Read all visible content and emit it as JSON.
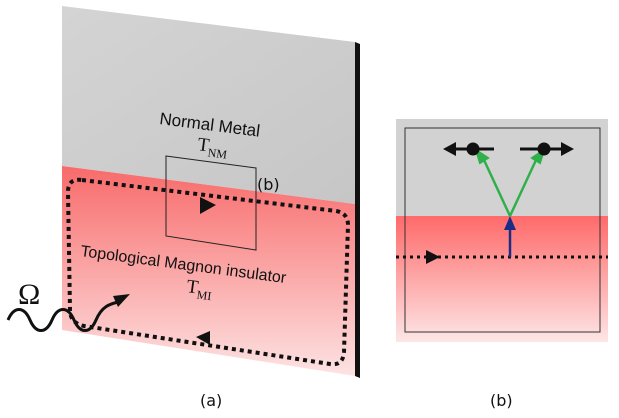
{
  "panel_a": {
    "caption": "(a)",
    "top_region_label": "Normal Metal",
    "top_region_symbol": "T",
    "top_region_subscript": "NM",
    "bottom_region_label": "Topological Magnon insulator",
    "bottom_region_symbol": "T",
    "bottom_region_subscript": "MI",
    "drive_symbol": "Ω",
    "inset_ref": "(b)"
  },
  "panel_b": {
    "caption": "(b)"
  },
  "colors": {
    "metal": "#d0d0d0",
    "insulator_top": "#f86a6a",
    "insulator_bottom": "#fde2e2",
    "dotted_path": "#111111",
    "green_arrow": "#2fb04a",
    "blue_arrow": "#1a2d86",
    "edge": "#000000"
  }
}
